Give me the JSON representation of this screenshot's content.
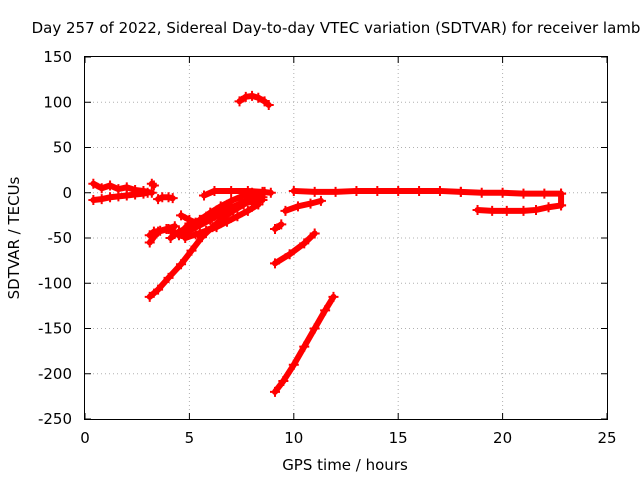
{
  "chart_data": {
    "type": "scatter",
    "title": "Day 257 of 2022, Sidereal Day-to-day VTEC variation (SDTVAR) for receiver lamb",
    "xlabel": "GPS time / hours",
    "ylabel": "SDTVAR / TECUs",
    "xlim": [
      0,
      25
    ],
    "ylim": [
      -250,
      150
    ],
    "xticks": [
      0,
      5,
      10,
      15,
      20,
      25
    ],
    "yticks": [
      -250,
      -200,
      -150,
      -100,
      -50,
      0,
      50,
      100,
      150
    ],
    "grid": true,
    "legend": "none",
    "marker": "plus",
    "color": "#ff0000",
    "series": [
      {
        "x": [
          0.4,
          0.8,
          1.2,
          1.6,
          2.0,
          2.4,
          2.8,
          3.2
        ],
        "y": [
          10,
          5,
          8,
          4,
          6,
          3,
          2,
          0
        ]
      },
      {
        "x": [
          0.4,
          0.8,
          1.2,
          1.6,
          2.0,
          2.4,
          2.8,
          3.0
        ],
        "y": [
          -8,
          -7,
          -5,
          -4,
          -3,
          -2,
          -1,
          0
        ]
      },
      {
        "x": [
          3.2,
          3.3
        ],
        "y": [
          10,
          8
        ]
      },
      {
        "x": [
          3.5,
          3.7,
          4.0,
          4.2
        ],
        "y": [
          -7,
          -5,
          -5,
          -6
        ]
      },
      {
        "x": [
          7.4,
          7.7,
          8.0,
          8.3,
          8.6,
          8.8
        ],
        "y": [
          101,
          106,
          107,
          105,
          101,
          97
        ]
      },
      {
        "x": [
          5.7,
          6.2,
          7.0,
          7.8,
          8.5,
          8.9
        ],
        "y": [
          -3,
          2,
          2,
          2,
          1,
          0
        ]
      },
      {
        "x": [
          10.0,
          11.0,
          12.0,
          13.0,
          14.0,
          15.0,
          16.0,
          17.0,
          18.0
        ],
        "y": [
          2,
          1,
          1,
          2,
          2,
          2,
          2,
          2,
          1
        ]
      },
      {
        "x": [
          18.0,
          19.0,
          20.0,
          21.0,
          22.0,
          22.8
        ],
        "y": [
          1,
          0,
          0,
          -1,
          -1,
          -1
        ]
      },
      {
        "x": [
          18.8,
          19.5,
          20.2,
          21.0,
          21.6,
          22.2,
          22.8
        ],
        "y": [
          -19,
          -20,
          -20,
          -20,
          -19,
          -16,
          -14
        ]
      },
      {
        "x": [
          22.8,
          22.8
        ],
        "y": [
          -1,
          -14
        ]
      },
      {
        "x": [
          9.6,
          10.2,
          10.8,
          11.3
        ],
        "y": [
          -20,
          -15,
          -12,
          -9
        ]
      },
      {
        "x": [
          9.1,
          9.4
        ],
        "y": [
          -40,
          -35
        ]
      },
      {
        "x": [
          9.1,
          9.8,
          10.5,
          11.0
        ],
        "y": [
          -78,
          -68,
          -56,
          -45
        ]
      },
      {
        "x": [
          9.1,
          9.5,
          10.0,
          10.5,
          11.0,
          11.5,
          11.9
        ],
        "y": [
          -220,
          -208,
          -190,
          -170,
          -150,
          -130,
          -115
        ]
      },
      {
        "x": [
          3.1,
          3.5,
          4.0,
          4.6,
          5.1,
          5.6,
          6.1,
          6.6,
          7.1,
          7.6,
          8.1
        ],
        "y": [
          -115,
          -107,
          -94,
          -79,
          -64,
          -49,
          -38,
          -28,
          -20,
          -13,
          -7
        ]
      },
      {
        "x": [
          3.1,
          3.5,
          4.0,
          4.5,
          5.0,
          5.6,
          6.2,
          6.8,
          7.4,
          8.0,
          8.5
        ],
        "y": [
          -55,
          -43,
          -40,
          -46,
          -34,
          -30,
          -24,
          -18,
          -13,
          -8,
          -5
        ]
      },
      {
        "x": [
          3.1,
          3.3,
          3.6,
          3.9,
          4.3
        ],
        "y": [
          -47,
          -43,
          -42,
          -40,
          -37
        ]
      },
      {
        "x": [
          4.1,
          4.5,
          5.0,
          5.5,
          6.0,
          6.5,
          7.0,
          7.5,
          8.0,
          8.6
        ],
        "y": [
          -50,
          -43,
          -38,
          -30,
          -22,
          -15,
          -9,
          -4,
          0,
          1
        ]
      },
      {
        "x": [
          4.5,
          5.0,
          5.5,
          6.0,
          6.5,
          7.0,
          7.5,
          8.0,
          8.3
        ],
        "y": [
          -47,
          -42,
          -36,
          -30,
          -23,
          -17,
          -11,
          -6,
          -3
        ]
      },
      {
        "x": [
          4.8,
          5.3,
          5.8,
          6.3,
          6.8,
          7.3,
          7.8,
          8.3
        ],
        "y": [
          -50,
          -46,
          -42,
          -38,
          -32,
          -26,
          -20,
          -13
        ]
      },
      {
        "x": [
          5.0,
          5.5,
          6.0,
          6.5,
          7.0,
          7.5,
          8.0,
          8.5
        ],
        "y": [
          -38,
          -33,
          -27,
          -21,
          -16,
          -12,
          -10,
          -8
        ]
      },
      {
        "x": [
          4.6,
          5.0,
          5.3
        ],
        "y": [
          -25,
          -30,
          -33
        ]
      }
    ]
  }
}
